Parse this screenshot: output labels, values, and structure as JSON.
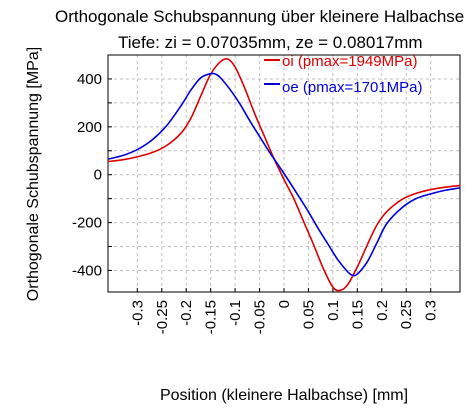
{
  "chart_data": {
    "type": "line",
    "title": "Orthogonale Schubspannung über kleinere Halbachse",
    "subtitle": "Tiefe: zi = 0.07035mm, ze = 0.08017mm",
    "xlabel": "Position (kleinere Halbachse) [mm]",
    "ylabel": "Orthogonale Schubspannung [MPa]",
    "xlim": [
      -0.36,
      0.36
    ],
    "ylim": [
      -490,
      500
    ],
    "xticks": [
      -0.3,
      -0.25,
      -0.2,
      -0.15,
      -0.1,
      -0.05,
      0,
      0.05,
      0.1,
      0.15,
      0.2,
      0.25,
      0.3
    ],
    "xtick_labels": [
      "-0.3",
      "-0.25",
      "-0.2",
      "-0.15",
      "-0.1",
      "-0.05",
      "0",
      "0.05",
      "0.1",
      "0.15",
      "0.2",
      "0.25",
      "0.3"
    ],
    "yticks": [
      -400,
      -200,
      0,
      200,
      400
    ],
    "ytick_labels": [
      "-400",
      "-200",
      "0",
      "200",
      "400"
    ],
    "grid": true,
    "legend_position": "top-right",
    "series": [
      {
        "name": "oi (pmax=1949MPa)",
        "color": "#dd0000",
        "x": [
          -0.36,
          -0.33,
          -0.3,
          -0.27,
          -0.24,
          -0.21,
          -0.19,
          -0.17,
          -0.15,
          -0.13,
          -0.115,
          -0.1,
          -0.08,
          -0.06,
          -0.04,
          -0.02,
          0,
          0.02,
          0.04,
          0.06,
          0.08,
          0.1,
          0.115,
          0.13,
          0.15,
          0.17,
          0.19,
          0.21,
          0.24,
          0.27,
          0.3,
          0.33,
          0.36
        ],
        "y": [
          55,
          62,
          75,
          92,
          122,
          175,
          238,
          330,
          420,
          472,
          483,
          450,
          360,
          255,
          160,
          65,
          -20,
          -100,
          -195,
          -290,
          -390,
          -470,
          -483,
          -460,
          -385,
          -295,
          -210,
          -155,
          -105,
          -78,
          -62,
          -52,
          -45
        ]
      },
      {
        "name": "oe (pmax=1701MPa)",
        "color": "#0000dd",
        "x": [
          -0.36,
          -0.33,
          -0.3,
          -0.27,
          -0.24,
          -0.21,
          -0.19,
          -0.17,
          -0.15,
          -0.14,
          -0.13,
          -0.11,
          -0.09,
          -0.07,
          -0.05,
          -0.03,
          0,
          0.03,
          0.05,
          0.07,
          0.09,
          0.11,
          0.13,
          0.14,
          0.15,
          0.17,
          0.19,
          0.21,
          0.24,
          0.27,
          0.3,
          0.33,
          0.36
        ],
        "y": [
          65,
          80,
          105,
          145,
          205,
          290,
          355,
          405,
          422,
          420,
          405,
          355,
          295,
          225,
          160,
          95,
          5,
          -90,
          -155,
          -225,
          -290,
          -355,
          -405,
          -420,
          -415,
          -365,
          -285,
          -205,
          -140,
          -100,
          -80,
          -65,
          -55
        ]
      }
    ]
  }
}
